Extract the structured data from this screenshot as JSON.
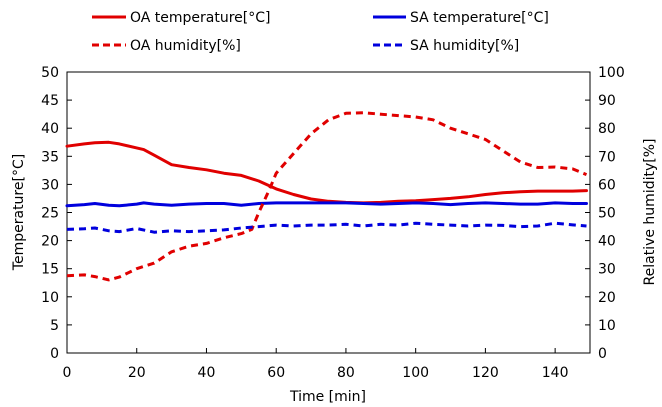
{
  "chart_data": {
    "type": "line",
    "xlabel": "Time [min]",
    "ylabel_left": "Temperature[°C]",
    "ylabel_right": "Relative humidity[%]",
    "xlim": [
      0,
      150
    ],
    "ylim_left": [
      0,
      50
    ],
    "ylim_right": [
      0,
      100
    ],
    "x_ticks": [
      0,
      20,
      40,
      60,
      80,
      100,
      120,
      140
    ],
    "y_left_ticks": [
      0,
      5,
      10,
      15,
      20,
      25,
      30,
      35,
      40,
      45,
      50
    ],
    "y_right_ticks": [
      0,
      10,
      20,
      30,
      40,
      50,
      60,
      70,
      80,
      90,
      100
    ],
    "grid": false,
    "legend": "top",
    "series": [
      {
        "name": "OA temperature[°C]",
        "axis": "left",
        "color": "#e00000",
        "dash": "solid",
        "x": [
          0,
          5,
          8,
          12,
          15,
          20,
          22,
          25,
          30,
          35,
          40,
          45,
          50,
          55,
          60,
          65,
          70,
          75,
          80,
          85,
          90,
          95,
          100,
          105,
          110,
          115,
          120,
          125,
          130,
          135,
          140,
          145,
          149
        ],
        "y": [
          36.8,
          37.2,
          37.4,
          37.5,
          37.2,
          36.5,
          36.2,
          35.2,
          33.5,
          33.0,
          32.6,
          32.0,
          31.6,
          30.6,
          29.2,
          28.2,
          27.4,
          27.0,
          26.8,
          26.7,
          26.8,
          27.0,
          27.1,
          27.3,
          27.5,
          27.8,
          28.2,
          28.5,
          28.7,
          28.8,
          28.8,
          28.8,
          28.9
        ]
      },
      {
        "name": "SA temperature[°C]",
        "axis": "left",
        "color": "#0000dd",
        "dash": "solid",
        "x": [
          0,
          5,
          8,
          12,
          15,
          20,
          22,
          25,
          30,
          35,
          40,
          45,
          50,
          55,
          60,
          65,
          70,
          75,
          80,
          85,
          90,
          95,
          100,
          105,
          110,
          115,
          120,
          125,
          130,
          135,
          140,
          145,
          149
        ],
        "y": [
          26.2,
          26.4,
          26.6,
          26.3,
          26.2,
          26.5,
          26.7,
          26.5,
          26.3,
          26.5,
          26.6,
          26.6,
          26.3,
          26.6,
          26.7,
          26.7,
          26.7,
          26.7,
          26.7,
          26.6,
          26.5,
          26.6,
          26.7,
          26.6,
          26.4,
          26.6,
          26.7,
          26.6,
          26.5,
          26.5,
          26.7,
          26.6,
          26.6
        ]
      },
      {
        "name": "OA humidity[%]",
        "axis": "right",
        "color": "#e00000",
        "dash": "dashed",
        "x": [
          0,
          5,
          8,
          12,
          15,
          20,
          25,
          30,
          35,
          40,
          45,
          50,
          53,
          55,
          58,
          60,
          65,
          70,
          75,
          80,
          85,
          90,
          95,
          100,
          105,
          110,
          115,
          120,
          125,
          130,
          135,
          140,
          145,
          149
        ],
        "y": [
          27.5,
          27.8,
          27.2,
          26.0,
          27.0,
          30.0,
          32.0,
          36.0,
          38.0,
          39.0,
          41.0,
          42.5,
          44.0,
          50.0,
          58.0,
          64.0,
          71.0,
          78.0,
          83.0,
          85.3,
          85.5,
          85.0,
          84.5,
          84.0,
          83.0,
          80.0,
          78.0,
          76.0,
          72.0,
          68.0,
          66.0,
          66.2,
          65.5,
          63.5
        ]
      },
      {
        "name": "SA humidity[%]",
        "axis": "right",
        "color": "#0000dd",
        "dash": "dashed",
        "x": [
          0,
          5,
          8,
          12,
          15,
          20,
          25,
          30,
          35,
          40,
          45,
          50,
          55,
          60,
          65,
          70,
          75,
          80,
          85,
          90,
          95,
          100,
          105,
          110,
          115,
          120,
          125,
          130,
          135,
          140,
          145,
          149
        ],
        "y": [
          44.0,
          44.2,
          44.5,
          43.5,
          43.2,
          44.3,
          43.0,
          43.5,
          43.2,
          43.5,
          43.8,
          44.5,
          45.0,
          45.5,
          45.2,
          45.5,
          45.5,
          45.8,
          45.2,
          45.8,
          45.5,
          46.2,
          45.8,
          45.5,
          45.2,
          45.5,
          45.4,
          45.0,
          45.2,
          46.2,
          45.6,
          45.2
        ]
      }
    ]
  }
}
